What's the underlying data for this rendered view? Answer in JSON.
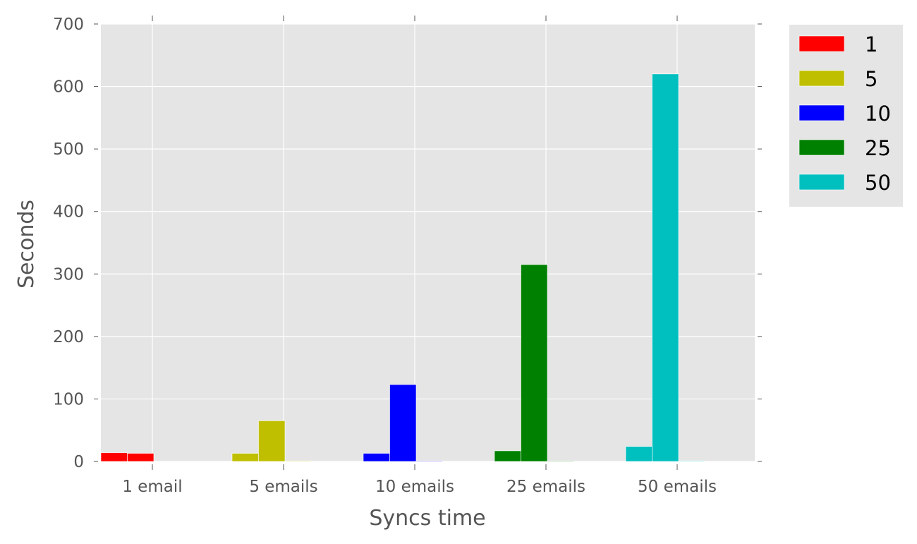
{
  "chart_data": {
    "type": "bar",
    "title": "",
    "xlabel": "Syncs time",
    "ylabel": "Seconds",
    "categories": [
      "1 email",
      "5 emails",
      "10 emails",
      "25 emails",
      "50 emails"
    ],
    "ylim": [
      0,
      700
    ],
    "yticks": [
      0,
      100,
      200,
      300,
      400,
      500,
      600,
      700
    ],
    "grid": true,
    "legend_position": "outside-top-right",
    "series": [
      {
        "name": "1",
        "color": "#ff0000",
        "values": [
          14,
          13,
          0,
          0,
          0
        ]
      },
      {
        "name": "5",
        "color": "#bfbf00",
        "values": [
          13,
          65,
          1,
          0,
          0
        ]
      },
      {
        "name": "10",
        "color": "#0000ff",
        "values": [
          13,
          123,
          1,
          0,
          0
        ]
      },
      {
        "name": "25",
        "color": "#008000",
        "values": [
          17,
          315,
          1,
          0,
          0
        ]
      },
      {
        "name": "50",
        "color": "#00bfbf",
        "values": [
          24,
          620,
          1,
          0,
          0
        ]
      }
    ]
  }
}
